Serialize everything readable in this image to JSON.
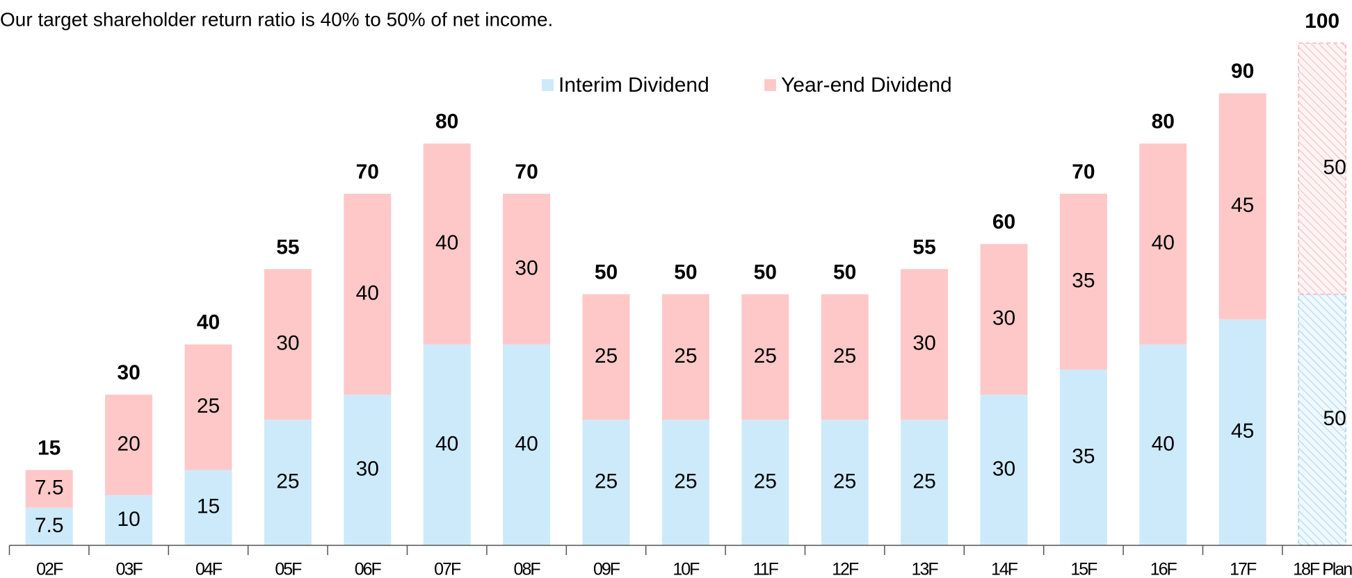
{
  "chart_data": {
    "type": "stacked_bar",
    "title": "Our target shareholder return ratio is 40% to 50% of net income.",
    "categories": [
      "02F",
      "03F",
      "04F",
      "05F",
      "06F",
      "07F",
      "08F",
      "09F",
      "10F",
      "11F",
      "12F",
      "13F",
      "14F",
      "15F",
      "16F",
      "17F",
      "18F Plan"
    ],
    "series": [
      {
        "name": "Interim Dividend",
        "color": "#cdeafb",
        "values": [
          7.5,
          10,
          15,
          25,
          30,
          40,
          40,
          25,
          25,
          25,
          25,
          25,
          30,
          35,
          40,
          45,
          50
        ]
      },
      {
        "name": "Year-end Dividend",
        "color": "#fec8c8",
        "values": [
          7.5,
          20,
          25,
          30,
          40,
          40,
          30,
          25,
          25,
          25,
          25,
          30,
          30,
          35,
          40,
          45,
          50
        ]
      }
    ],
    "totals": [
      15,
      30,
      40,
      55,
      70,
      80,
      70,
      50,
      50,
      50,
      50,
      55,
      60,
      70,
      80,
      90,
      100
    ],
    "hatched": [
      false,
      false,
      false,
      false,
      false,
      false,
      false,
      false,
      false,
      false,
      false,
      false,
      false,
      false,
      false,
      false,
      true
    ],
    "ylim": [
      0,
      100
    ],
    "legend": "top"
  }
}
